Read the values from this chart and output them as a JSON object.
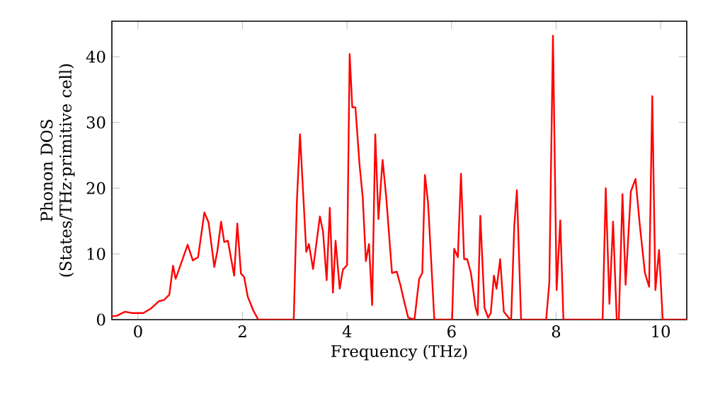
{
  "chart_data": {
    "type": "line",
    "xlabel": "Frequency (THz)",
    "ylabel": "Phonon DOS (States/THz·primitive cell)",
    "xlim": [
      -0.5,
      10.5
    ],
    "ylim": [
      0,
      45.4
    ],
    "xticks": [
      0,
      2,
      4,
      6,
      8,
      10
    ],
    "yticks": [
      0,
      10,
      20,
      30,
      40
    ],
    "grid": false,
    "marker": "none",
    "line_style": "solid",
    "series": [
      {
        "color": "#ff0000",
        "x": [
          -0.5,
          -0.4,
          -0.25,
          -0.1,
          0.1,
          0.25,
          0.4,
          0.5,
          0.6,
          0.67,
          0.72,
          0.8,
          0.95,
          1.05,
          1.15,
          1.27,
          1.35,
          1.46,
          1.52,
          1.59,
          1.65,
          1.72,
          1.84,
          1.9,
          1.97,
          2.03,
          2.1,
          2.2,
          2.3,
          2.98,
          3.04,
          3.1,
          3.22,
          3.27,
          3.35,
          3.48,
          3.54,
          3.61,
          3.67,
          3.73,
          3.78,
          3.86,
          3.92,
          4.0,
          4.05,
          4.1,
          4.16,
          4.24,
          4.3,
          4.36,
          4.42,
          4.48,
          4.54,
          4.6,
          4.68,
          4.75,
          4.86,
          4.95,
          5.02,
          5.08,
          5.17,
          5.29,
          5.38,
          5.44,
          5.49,
          5.55,
          5.67,
          6.01,
          6.05,
          6.12,
          6.18,
          6.24,
          6.3,
          6.37,
          6.46,
          6.5,
          6.55,
          6.63,
          6.7,
          6.75,
          6.81,
          6.86,
          6.93,
          7.0,
          7.09,
          7.14,
          7.2,
          7.25,
          7.33,
          7.81,
          7.87,
          7.94,
          8.01,
          8.08,
          8.14,
          8.89,
          8.95,
          9.02,
          9.09,
          9.16,
          9.2,
          9.27,
          9.33,
          9.43,
          9.52,
          9.6,
          9.7,
          9.78,
          9.84,
          9.9,
          9.97,
          10.04,
          10.5
        ],
        "values": [
          0.5,
          0.6,
          1.2,
          1.0,
          1.0,
          1.7,
          2.8,
          3.0,
          3.8,
          8.2,
          6.2,
          8,
          11.4,
          9,
          9.5,
          16.3,
          14.8,
          8,
          10.5,
          14.9,
          11.8,
          12,
          6.7,
          14.6,
          7,
          6.5,
          3.5,
          1.5,
          0,
          0,
          18,
          28.2,
          10.3,
          11.5,
          7.7,
          15.7,
          13.4,
          6,
          17,
          4.1,
          12,
          4.7,
          7.6,
          8.3,
          40.4,
          32.3,
          32.3,
          23.5,
          18.6,
          8.9,
          11.5,
          2.2,
          28.2,
          15.3,
          24.3,
          18.6,
          7.1,
          7.3,
          5.3,
          3.2,
          0.3,
          0,
          6.2,
          7.1,
          22,
          17.8,
          0,
          0,
          10.8,
          9.5,
          22.2,
          9.2,
          9.2,
          7.1,
          1.8,
          0.7,
          15.8,
          1.8,
          0.3,
          1.0,
          6.7,
          4.7,
          9.2,
          1.2,
          0.3,
          0,
          14.3,
          19.7,
          0,
          0,
          5.6,
          43.2,
          4.5,
          15.1,
          0,
          0,
          20,
          2.4,
          14.9,
          0,
          0,
          19.1,
          5.3,
          19.5,
          21.4,
          14.5,
          7.1,
          5,
          34,
          4.5,
          10.6,
          0,
          0
        ]
      }
    ]
  }
}
